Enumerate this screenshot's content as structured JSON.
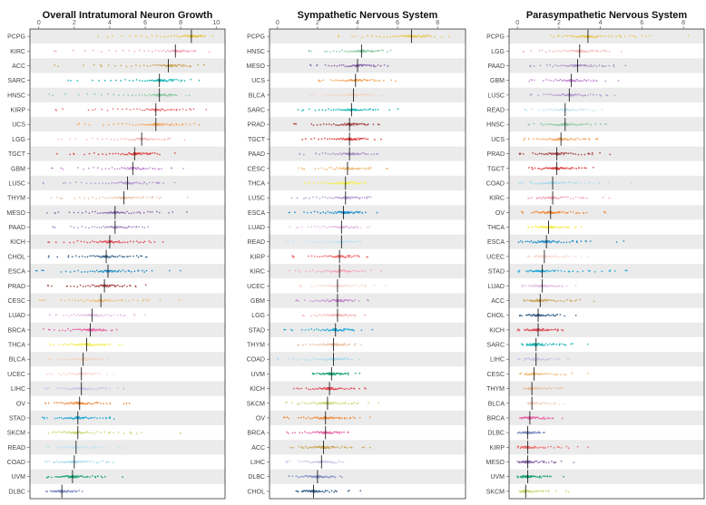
{
  "colors": {
    "PCPG": "#e8c547",
    "KIRC": "#f4a6b8",
    "ACC": "#c9a455",
    "SARC": "#19b7b7",
    "HNSC": "#8cc9a3",
    "KIRP": "#ee6f6f",
    "UCS": "#f4a45a",
    "LGG": "#f6b6b6",
    "TGCT": "#dd4040",
    "GBM": "#c48ad1",
    "LUSC": "#b49bd1",
    "THYM": "#e9c0a4",
    "MESO": "#8a6aaa",
    "PAAD": "#a892c4",
    "KICH": "#e44a5a",
    "CHOL": "#41698f",
    "ESCA": "#1f8fc9",
    "PRAD": "#a84848",
    "CESC": "#f0bd7a",
    "LUAD": "#e2bde2",
    "BRCA": "#e867a8",
    "THCA": "#f5ee50",
    "BLCA": "#f2d4c4",
    "UCEC": "#fad8d2",
    "LIHC": "#c8c8e8",
    "OV": "#ef8a3c",
    "STAD": "#21a9d9",
    "SKCM": "#c6da7a",
    "READ": "#c4e4f2",
    "COAD": "#a8dcef",
    "UVM": "#1aa37a",
    "DLBC": "#7f8ec3"
  },
  "chart_data": [
    {
      "type": "scatter",
      "title": "Overall Intratumoral Neuron Growth",
      "xlim": [
        -0.5,
        10.5
      ],
      "xticks": [
        0,
        2,
        4,
        6,
        8,
        10
      ],
      "categories": [
        "PCPG",
        "KIRC",
        "ACC",
        "SARC",
        "HNSC",
        "KIRP",
        "UCS",
        "LGG",
        "TGCT",
        "GBM",
        "LUSC",
        "THYM",
        "MESO",
        "PAAD",
        "KICH",
        "CHOL",
        "ESCA",
        "PRAD",
        "CESC",
        "LUAD",
        "BRCA",
        "THCA",
        "BLCA",
        "UCEC",
        "LIHC",
        "OV",
        "STAD",
        "SKCM",
        "READ",
        "COAD",
        "UVM",
        "DLBC"
      ],
      "medians": [
        8.6,
        7.7,
        7.3,
        6.8,
        6.8,
        6.6,
        6.6,
        5.8,
        5.4,
        5.3,
        5.0,
        4.8,
        4.3,
        4.3,
        4.0,
        3.8,
        3.9,
        3.7,
        3.5,
        3.0,
        2.9,
        2.7,
        2.5,
        2.4,
        2.4,
        2.3,
        2.2,
        2.2,
        2.1,
        2.0,
        1.9,
        1.3
      ],
      "mins": [
        3.2,
        0.5,
        0.8,
        1.5,
        0.5,
        0.7,
        2.0,
        1.0,
        1.0,
        0.5,
        0.0,
        0.5,
        0.3,
        0.7,
        0.5,
        0.5,
        -0.2,
        0.4,
        0.0,
        0.5,
        0.2,
        0.6,
        0.5,
        0.4,
        0.3,
        0.3,
        0.2,
        0.5,
        0.4,
        0.3,
        0.4,
        0.4
      ],
      "maxs": [
        9.9,
        10.0,
        9.9,
        9.4,
        8.9,
        10.3,
        10.3,
        8.9,
        7.9,
        8.8,
        8.9,
        8.8,
        9.4,
        7.2,
        8.8,
        8.0,
        8.6,
        6.8,
        9.2,
        7.0,
        4.9,
        5.3,
        4.8,
        4.6,
        5.8,
        6.0,
        6.1,
        9.4,
        5.9,
        5.5,
        5.4,
        3.0
      ]
    },
    {
      "type": "scatter",
      "title": "Sympathetic Nervous System",
      "xlim": [
        -0.4,
        9.4
      ],
      "xticks": [
        0,
        2,
        4,
        6,
        8
      ],
      "categories": [
        "PCPG",
        "HNSC",
        "MESO",
        "UCS",
        "BLCA",
        "SARC",
        "PRAD",
        "TGCT",
        "PAAD",
        "CESC",
        "THCA",
        "LUSC",
        "ESCA",
        "LUAD",
        "READ",
        "KIRP",
        "KIRC",
        "UCEC",
        "GBM",
        "LGG",
        "STAD",
        "THYM",
        "COAD",
        "UVM",
        "KICH",
        "SKCM",
        "OV",
        "BRCA",
        "ACC",
        "LIHC",
        "DLBC",
        "CHOL"
      ],
      "medians": [
        6.7,
        4.2,
        4.0,
        3.9,
        3.8,
        3.7,
        3.6,
        3.6,
        3.6,
        3.5,
        3.4,
        3.4,
        3.3,
        3.2,
        3.2,
        3.1,
        3.1,
        3.0,
        3.0,
        3.0,
        2.9,
        2.8,
        2.8,
        2.7,
        2.6,
        2.5,
        2.4,
        2.4,
        2.3,
        2.2,
        2.0,
        1.8
      ],
      "mins": [
        2.9,
        1.5,
        1.5,
        2.0,
        1.6,
        0.9,
        0.8,
        1.2,
        1.0,
        1.0,
        1.3,
        0.6,
        0.5,
        0.6,
        0.4,
        0.7,
        0.5,
        1.0,
        0.9,
        1.2,
        0.3,
        1.0,
        0.0,
        1.7,
        0.8,
        0.3,
        0.3,
        0.4,
        0.6,
        0.4,
        0.5,
        0.9
      ],
      "maxs": [
        8.8,
        6.1,
        6.5,
        6.5,
        6.0,
        6.3,
        5.5,
        5.4,
        5.6,
        6.1,
        4.9,
        5.7,
        5.3,
        5.0,
        4.8,
        5.0,
        5.5,
        6.0,
        4.9,
        4.9,
        4.9,
        4.4,
        4.4,
        4.5,
        5.3,
        5.8,
        5.4,
        4.4,
        5.2,
        3.9,
        3.6,
        4.3
      ]
    },
    {
      "type": "scatter",
      "title": "Parasympathetic Nervous System",
      "xlim": [
        -0.4,
        9.0
      ],
      "xticks": [
        0,
        2,
        4,
        6,
        8
      ],
      "categories": [
        "PCPG",
        "LGG",
        "PAAD",
        "GBM",
        "LUSC",
        "READ",
        "HNSC",
        "UCS",
        "PRAD",
        "TGCT",
        "COAD",
        "KIRC",
        "OV",
        "THCA",
        "ESCA",
        "UCEC",
        "STAD",
        "LUAD",
        "ACC",
        "CHOL",
        "KICH",
        "SARC",
        "LIHC",
        "CESC",
        "THYM",
        "BLCA",
        "BRCA",
        "DLBC",
        "KIRP",
        "MESO",
        "UVM",
        "SKCM"
      ],
      "medians": [
        3.4,
        3.0,
        2.9,
        2.6,
        2.5,
        2.3,
        2.3,
        2.1,
        1.9,
        1.9,
        1.7,
        1.7,
        1.6,
        1.5,
        1.4,
        1.3,
        1.2,
        1.2,
        1.1,
        1.0,
        1.0,
        0.9,
        0.9,
        0.8,
        0.7,
        0.7,
        0.6,
        0.5,
        0.5,
        0.5,
        0.5,
        0.4
      ],
      "mins": [
        1.5,
        0.2,
        0.6,
        0.5,
        0.6,
        0.3,
        0.5,
        0.3,
        0.1,
        0.5,
        0.0,
        0.5,
        0.2,
        0.5,
        0.0,
        0.5,
        0.0,
        0.2,
        0.3,
        0.1,
        0.0,
        0.2,
        0.0,
        0.1,
        0.3,
        0.5,
        0.1,
        0.0,
        0.0,
        0.0,
        0.0,
        0.1
      ],
      "maxs": [
        9.0,
        5.8,
        6.2,
        5.2,
        5.7,
        4.8,
        5.0,
        5.0,
        5.6,
        4.5,
        6.0,
        5.2,
        5.0,
        3.6,
        6.0,
        4.0,
        8.2,
        3.2,
        4.7,
        3.0,
        3.0,
        4.0,
        3.2,
        3.9,
        3.3,
        3.0,
        2.7,
        1.8,
        4.0,
        3.3,
        2.8,
        2.8
      ]
    }
  ]
}
